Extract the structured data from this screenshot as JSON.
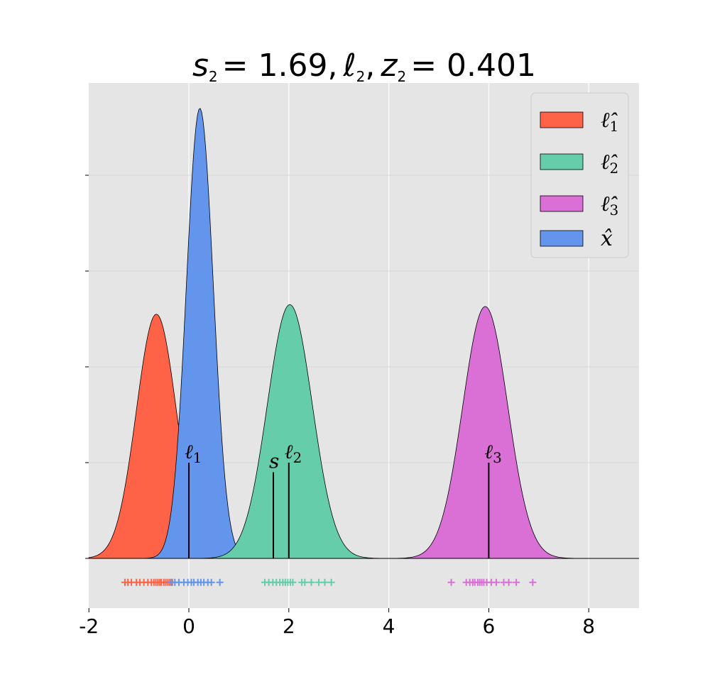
{
  "chart_data": {
    "type": "area",
    "title": {
      "s_symbol": "s",
      "s_sub": "2",
      "s_value": "= 1.69,",
      "l_symbol": "ℓ",
      "l_sub": "2",
      "comma": ",",
      "z_symbol": "z",
      "z_sub": "2",
      "z_value": "= 0.401"
    },
    "xlim": [
      -2,
      9
    ],
    "ylim": [
      -0.5,
      4.9
    ],
    "xticks": [
      -2,
      0,
      2,
      4,
      6,
      8
    ],
    "xtick_labels": [
      "-2",
      "0",
      "2",
      "4",
      "6",
      "8"
    ],
    "yticks": [
      1,
      2,
      3,
      4
    ],
    "grid": true,
    "legend_position": "top-right",
    "series": [
      {
        "key": "l1",
        "legend_symbol": "ℓ̂",
        "legend_sub": "1",
        "color": "#ff6347",
        "mean": -0.65,
        "sd": 0.4,
        "peak": 2.55
      },
      {
        "key": "x",
        "legend_symbol": "x̂",
        "legend_sub": "",
        "color": "#6495ed",
        "mean": 0.22,
        "sd": 0.27,
        "peak": 4.7
      },
      {
        "key": "l2",
        "legend_symbol": "ℓ̂",
        "legend_sub": "2",
        "color": "#66cdaa",
        "mean": 2.02,
        "sd": 0.45,
        "peak": 2.65
      },
      {
        "key": "l3",
        "legend_symbol": "ℓ̂",
        "legend_sub": "3",
        "color": "#da70d6",
        "mean": 5.93,
        "sd": 0.45,
        "peak": 2.63
      }
    ],
    "legend_order": [
      "l1",
      "l2",
      "l3",
      "x"
    ],
    "markers": [
      {
        "x": 0,
        "height": 1.0,
        "label": "ℓ",
        "sub": "1"
      },
      {
        "x": 1.69,
        "height": 0.9,
        "label": "s",
        "sub": ""
      },
      {
        "x": 2,
        "height": 1.0,
        "label": "ℓ",
        "sub": "2"
      },
      {
        "x": 6,
        "height": 1.0,
        "label": "ℓ",
        "sub": "3"
      }
    ],
    "rug_y": -0.25,
    "rug": {
      "l1": [
        -1.28,
        -1.22,
        -1.15,
        -1.05,
        -0.98,
        -0.9,
        -0.82,
        -0.75,
        -0.7,
        -0.66,
        -0.62,
        -0.58,
        -0.55,
        -0.5,
        -0.46,
        -0.42,
        -0.38,
        -0.33
      ],
      "x": [
        -0.35,
        -0.28,
        -0.2,
        -0.1,
        -0.02,
        0.05,
        0.1,
        0.18,
        0.24,
        0.3,
        0.38,
        0.45,
        0.62
      ],
      "l2": [
        1.52,
        1.6,
        1.68,
        1.75,
        1.82,
        1.88,
        1.93,
        1.98,
        2.03,
        2.08,
        2.26,
        2.32,
        2.45,
        2.6,
        2.72,
        2.85
      ],
      "l3": [
        5.25,
        5.55,
        5.62,
        5.68,
        5.72,
        5.78,
        5.82,
        5.86,
        5.9,
        5.96,
        6.05,
        6.15,
        6.3,
        6.4,
        6.55,
        6.88
      ]
    }
  }
}
